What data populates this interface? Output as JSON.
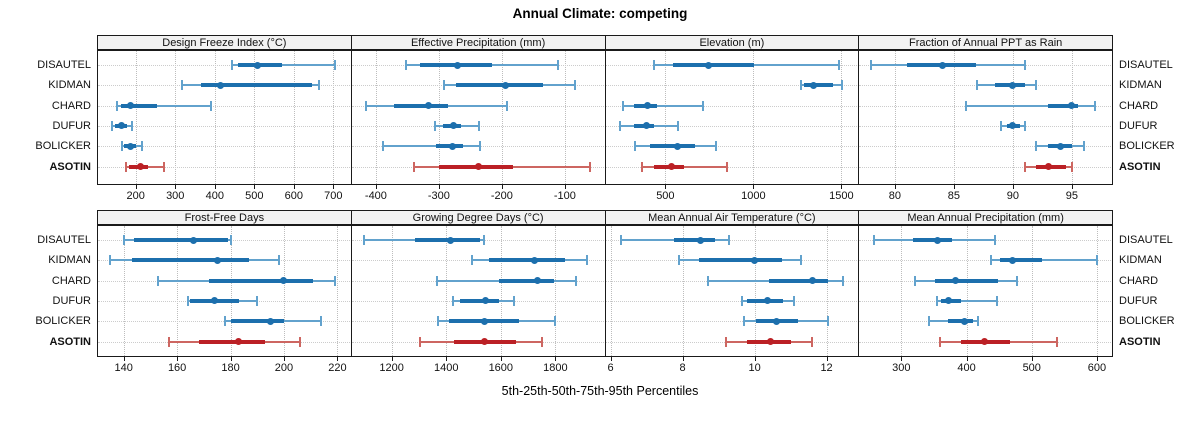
{
  "title": "Annual Climate: competing",
  "xaxis_label": "5th-25th-50th-75th-95th Percentiles",
  "highlight_station": "ASOTIN",
  "colors": {
    "blue_solid": "#1c6fad",
    "blue_light": "#62a2cd",
    "red_solid": "#bb2025",
    "red_light": "#cd6661",
    "header_bg": "#f2f2f2",
    "grid": "#c9c9c9",
    "border": "#1a1a1a"
  },
  "chart_data": {
    "type": "dotplot-intervals",
    "percentile_levels": [
      5,
      25,
      50,
      75,
      95
    ],
    "stations": [
      "DISAUTEL",
      "KIDMAN",
      "CHARD",
      "DUFUR",
      "BOLICKER",
      "ASOTIN"
    ],
    "legend_position": "none",
    "grid": "dotted",
    "panels": [
      {
        "row": 0,
        "title": "Design Freeze Index (°C)",
        "xlim": [
          102,
          744
        ],
        "ticks": [
          200,
          300,
          400,
          500,
          600,
          700
        ],
        "values": [
          [
            444,
            459,
            509,
            570,
            703
          ],
          [
            318,
            366,
            414,
            645,
            664
          ],
          [
            153,
            163,
            187,
            253,
            390
          ],
          [
            139,
            147,
            163,
            177,
            190
          ],
          [
            164,
            171,
            188,
            200,
            217
          ],
          [
            175,
            184,
            211,
            232,
            272
          ]
        ]
      },
      {
        "row": 0,
        "title": "Effective Precipitation (mm)",
        "xlim": [
          -440,
          -37
        ],
        "ticks": [
          -400,
          -300,
          -200,
          -100
        ],
        "values": [
          [
            -353,
            -330,
            -270,
            -215,
            -111
          ],
          [
            -292,
            -273,
            -195,
            -135,
            -84
          ],
          [
            -415,
            -371,
            -316,
            -286,
            -192
          ],
          [
            -306,
            -294,
            -277,
            -265,
            -236
          ],
          [
            -389,
            -305,
            -279,
            -262,
            -234
          ],
          [
            -339,
            -300,
            -237,
            -183,
            -60
          ]
        ]
      },
      {
        "row": 0,
        "title": "Elevation (m)",
        "xlim": [
          154,
          1596
        ],
        "ticks": [
          500,
          1000,
          1500
        ],
        "values": [
          [
            434,
            544,
            745,
            1006,
            1485
          ],
          [
            1273,
            1288,
            1341,
            1454,
            1505
          ],
          [
            260,
            320,
            396,
            453,
            711
          ],
          [
            241,
            320,
            390,
            434,
            570
          ],
          [
            330,
            415,
            570,
            670,
            787
          ],
          [
            368,
            434,
            534,
            604,
            850
          ]
        ]
      },
      {
        "row": 0,
        "title": "Fraction of Annual PPT as Rain",
        "xlim": [
          76.9,
          98.4
        ],
        "ticks": [
          80,
          85,
          90,
          95
        ],
        "values": [
          [
            78,
            81,
            84,
            86.9,
            91
          ],
          [
            87,
            88.5,
            90,
            91,
            92
          ],
          [
            86,
            93,
            95,
            95.5,
            97
          ],
          [
            89,
            89.5,
            90,
            90.6,
            91
          ],
          [
            92,
            93,
            94,
            95,
            96
          ],
          [
            91,
            92,
            93,
            94.5,
            95
          ]
        ]
      },
      {
        "row": 1,
        "title": "Frost-Free Days",
        "xlim": [
          130,
          225
        ],
        "ticks": [
          140,
          160,
          180,
          200,
          220
        ],
        "values": [
          [
            140,
            144,
            166,
            179,
            180
          ],
          [
            135,
            143,
            175,
            187,
            198
          ],
          [
            153,
            172,
            200,
            211,
            219
          ],
          [
            164,
            165,
            174,
            183,
            190
          ],
          [
            178,
            180,
            195,
            200,
            214
          ],
          [
            157,
            168,
            183,
            193,
            206
          ]
        ]
      },
      {
        "row": 1,
        "title": "Growing Degree Days (°C)",
        "xlim": [
          1050,
          1980
        ],
        "ticks": [
          1200,
          1400,
          1600,
          1800
        ],
        "values": [
          [
            1100,
            1285,
            1415,
            1525,
            1540
          ],
          [
            1495,
            1555,
            1725,
            1835,
            1915
          ],
          [
            1365,
            1595,
            1735,
            1795,
            1875
          ],
          [
            1425,
            1450,
            1545,
            1595,
            1650
          ],
          [
            1370,
            1410,
            1540,
            1665,
            1800
          ],
          [
            1305,
            1430,
            1540,
            1655,
            1750
          ]
        ]
      },
      {
        "row": 1,
        "title": "Mean Annual Air Temperature (°C)",
        "xlim": [
          5.83,
          12.88
        ],
        "ticks": [
          6,
          8,
          10,
          12
        ],
        "values": [
          [
            6.3,
            7.75,
            8.5,
            8.9,
            9.3
          ],
          [
            7.9,
            8.45,
            10,
            10.75,
            11.3
          ],
          [
            8.7,
            10.4,
            11.6,
            12.05,
            12.45
          ],
          [
            9.65,
            9.8,
            10.35,
            10.8,
            11.1
          ],
          [
            9.7,
            10.05,
            10.6,
            11.2,
            12.05
          ],
          [
            9.2,
            9.8,
            10.45,
            11,
            11.6
          ]
        ]
      },
      {
        "row": 1,
        "title": "Mean Annual Precipitation (mm)",
        "xlim": [
          234,
          623
        ],
        "ticks": [
          300,
          400,
          500,
          600
        ],
        "values": [
          [
            258,
            318,
            355,
            378,
            444
          ],
          [
            438,
            451,
            470,
            515,
            600
          ],
          [
            321,
            352,
            383,
            448,
            478
          ],
          [
            355,
            361,
            373,
            392,
            446
          ],
          [
            342,
            371,
            397,
            410,
            417
          ],
          [
            360,
            392,
            427,
            466,
            538
          ]
        ]
      }
    ]
  }
}
